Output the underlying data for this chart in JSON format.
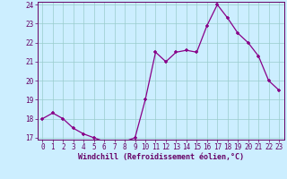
{
  "x": [
    0,
    1,
    2,
    3,
    4,
    5,
    6,
    7,
    8,
    9,
    10,
    11,
    12,
    13,
    14,
    15,
    16,
    17,
    18,
    19,
    20,
    21,
    22,
    23
  ],
  "y": [
    18.0,
    18.3,
    18.0,
    17.5,
    17.2,
    17.0,
    16.8,
    16.8,
    16.8,
    17.0,
    19.0,
    21.5,
    21.0,
    21.5,
    21.6,
    21.5,
    22.9,
    24.0,
    23.3,
    22.5,
    22.0,
    21.3,
    20.0,
    19.5
  ],
  "xlabel": "Windchill (Refroidissement éolien,°C)",
  "ylim_min": 16.9,
  "ylim_max": 24.15,
  "yticks": [
    17,
    18,
    19,
    20,
    21,
    22,
    23,
    24
  ],
  "xticks": [
    0,
    1,
    2,
    3,
    4,
    5,
    6,
    7,
    8,
    9,
    10,
    11,
    12,
    13,
    14,
    15,
    16,
    17,
    18,
    19,
    20,
    21,
    22,
    23
  ],
  "line_color": "#880088",
  "marker": "+",
  "bg_color": "#cceeff",
  "grid_color": "#99cccc",
  "label_color": "#660066",
  "xlabel_fontsize": 6.0,
  "tick_fontsize": 5.5
}
